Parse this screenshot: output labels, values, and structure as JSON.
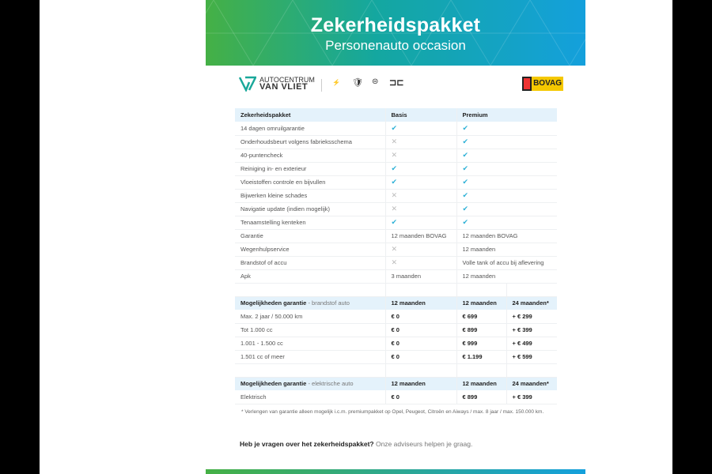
{
  "banner": {
    "title": "Zekerheidspakket",
    "subtitle": "Personenauto occasion"
  },
  "logos": {
    "dealer_line1": "AUTOCENTRUM",
    "dealer_line2": "VAN VLIET",
    "brands": [
      "OPEL",
      "PEUGEOT",
      "CITROËN",
      "AIWAYS"
    ],
    "bovag": "BOVAG"
  },
  "package_table": {
    "headers": [
      "Zekerheidspakket",
      "Basis",
      "Premium"
    ],
    "rows": [
      [
        "14 dagen omruilgarantie",
        "check",
        "check"
      ],
      [
        "Onderhoudsbeurt volgens fabrieksschema",
        "cross",
        "check"
      ],
      [
        "40-puntencheck",
        "cross",
        "check"
      ],
      [
        "Reiniging in- en exterieur",
        "check",
        "check"
      ],
      [
        "Vloeistoffen controle en bijvullen",
        "check",
        "check"
      ],
      [
        "Bijwerken kleine schades",
        "cross",
        "check"
      ],
      [
        "Navigatie update (indien mogelijk)",
        "cross",
        "check"
      ],
      [
        "Tenaamstelling kenteken",
        "check",
        "check"
      ],
      [
        "Garantie",
        "12 maanden BOVAG",
        "12 maanden BOVAG"
      ],
      [
        "Wegenhulpservice",
        "cross",
        "12 maanden"
      ],
      [
        "Brandstof of accu",
        "cross",
        "Volle tank of accu bij aflevering"
      ],
      [
        "Apk",
        "3 maanden",
        "12 maanden"
      ]
    ]
  },
  "fuel_table": {
    "header_bold": "Mogelijkheden garantie",
    "header_light": " - brandstof auto",
    "headers": [
      "12 maanden",
      "12 maanden",
      "24 maanden*"
    ],
    "rows": [
      [
        "Max. 2 jaar / 50.000 km",
        "€ 0",
        "€ 699",
        "+ € 299"
      ],
      [
        "Tot 1.000 cc",
        "€ 0",
        "€ 899",
        "+ € 399"
      ],
      [
        "1.001 - 1.500 cc",
        "€ 0",
        "€ 999",
        "+ € 499"
      ],
      [
        "1.501 cc of meer",
        "€ 0",
        "€ 1.199",
        "+ € 599"
      ]
    ]
  },
  "electric_table": {
    "header_bold": "Mogelijkheden garantie",
    "header_light": " - elektrische auto",
    "headers": [
      "12 maanden",
      "12 maanden",
      "24 maanden*"
    ],
    "rows": [
      [
        "Elektrisch",
        "€ 0",
        "€ 899",
        "+ € 399"
      ]
    ]
  },
  "footnote": "* Verlengen van garantie alleen mogelijk i.c.m. premiumpakket op Opel, Peugeot, Citroën en Aiways / max. 8 jaar / max. 150.000 km.",
  "question_bold": "Heb je vragen over het zekerheidspakket?",
  "question_rest": " Onze adviseurs helpen je graag.",
  "colors": {
    "check": "#2bb0d6",
    "header_bg": "#e4f2fb",
    "gradient_start": "#45b045",
    "gradient_end": "#14a0dc"
  }
}
